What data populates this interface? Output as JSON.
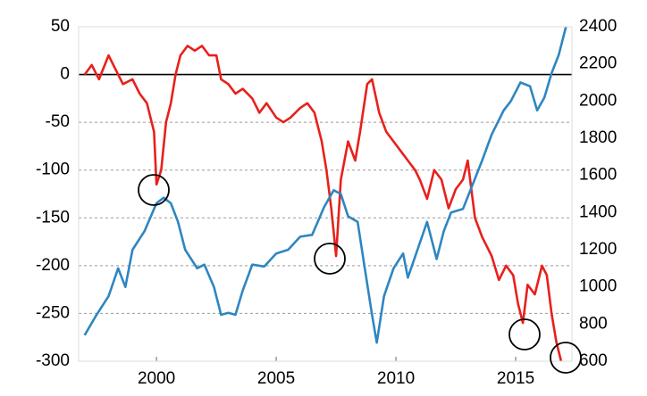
{
  "chart_data": {
    "type": "line",
    "xlim": [
      1996.75,
      2017.35
    ],
    "xticks": [
      2000,
      2005,
      2010,
      2015
    ],
    "ylim": [
      -300,
      50
    ],
    "yticks": [
      -300,
      -250,
      -200,
      -150,
      -100,
      -50,
      0,
      50
    ],
    "y2lim": [
      600,
      2400
    ],
    "y2ticks": [
      600,
      800,
      1000,
      1200,
      1400,
      1600,
      1800,
      2000,
      2200,
      2400
    ],
    "grid": true,
    "series": [
      {
        "color": "#e8201c",
        "x": [
          1997.0,
          1997.3,
          1997.6,
          1998.0,
          1998.3,
          1998.6,
          1999.0,
          1999.3,
          1999.6,
          1999.9,
          2000.0,
          2000.2,
          2000.4,
          2000.6,
          2000.8,
          2001.0,
          2001.3,
          2001.6,
          2001.9,
          2002.2,
          2002.5,
          2002.7,
          2003.0,
          2003.3,
          2003.6,
          2004.0,
          2004.3,
          2004.6,
          2005.0,
          2005.3,
          2005.6,
          2006.0,
          2006.3,
          2006.6,
          2006.9,
          2007.1,
          2007.3,
          2007.5,
          2007.7,
          2008.0,
          2008.3,
          2008.5,
          2008.8,
          2009.0,
          2009.3,
          2009.6,
          2009.9,
          2010.2,
          2010.5,
          2010.8,
          2011.0,
          2011.3,
          2011.6,
          2011.9,
          2012.2,
          2012.5,
          2012.8,
          2013.0,
          2013.3,
          2013.6,
          2014.0,
          2014.3,
          2014.6,
          2014.9,
          2015.1,
          2015.3,
          2015.5,
          2015.8,
          2016.1,
          2016.3,
          2016.5,
          2016.7,
          2016.9
        ],
        "values": [
          0,
          10,
          -5,
          20,
          5,
          -10,
          -5,
          -20,
          -30,
          -60,
          -115,
          -100,
          -50,
          -30,
          0,
          20,
          30,
          25,
          30,
          20,
          20,
          -5,
          -10,
          -20,
          -15,
          -25,
          -40,
          -30,
          -45,
          -50,
          -45,
          -35,
          -30,
          -40,
          -70,
          -100,
          -140,
          -190,
          -110,
          -70,
          -90,
          -60,
          -10,
          -5,
          -40,
          -60,
          -70,
          -80,
          -90,
          -100,
          -110,
          -130,
          -100,
          -110,
          -140,
          -120,
          -110,
          -90,
          -150,
          -170,
          -190,
          -215,
          -200,
          -210,
          -240,
          -260,
          -220,
          -230,
          -200,
          -210,
          -250,
          -280,
          -300
        ]
      },
      {
        "color": "#2e86c1",
        "axis": "y2",
        "x": [
          1997.0,
          1997.5,
          1998.0,
          1998.4,
          1998.7,
          1999.0,
          1999.5,
          2000.0,
          2000.3,
          2000.6,
          2000.9,
          2001.2,
          2001.7,
          2002.0,
          2002.4,
          2002.7,
          2003.0,
          2003.3,
          2003.6,
          2004.0,
          2004.5,
          2005.0,
          2005.5,
          2006.0,
          2006.5,
          2007.0,
          2007.4,
          2007.7,
          2008.0,
          2008.4,
          2008.7,
          2009.0,
          2009.2,
          2009.5,
          2009.9,
          2010.3,
          2010.5,
          2010.9,
          2011.3,
          2011.7,
          2012.0,
          2012.3,
          2012.8,
          2013.2,
          2013.6,
          2014.0,
          2014.5,
          2014.8,
          2015.2,
          2015.6,
          2015.9,
          2016.2,
          2016.5,
          2016.8,
          2017.1
        ],
        "values": [
          740,
          850,
          950,
          1100,
          1000,
          1200,
          1300,
          1450,
          1480,
          1450,
          1350,
          1200,
          1100,
          1120,
          1000,
          850,
          860,
          850,
          980,
          1120,
          1110,
          1180,
          1200,
          1270,
          1280,
          1430,
          1520,
          1500,
          1380,
          1350,
          1100,
          850,
          700,
          950,
          1100,
          1180,
          1050,
          1200,
          1350,
          1150,
          1300,
          1400,
          1420,
          1550,
          1680,
          1820,
          1950,
          2000,
          2100,
          2080,
          1950,
          2020,
          2150,
          2250,
          2400
        ]
      }
    ]
  }
}
